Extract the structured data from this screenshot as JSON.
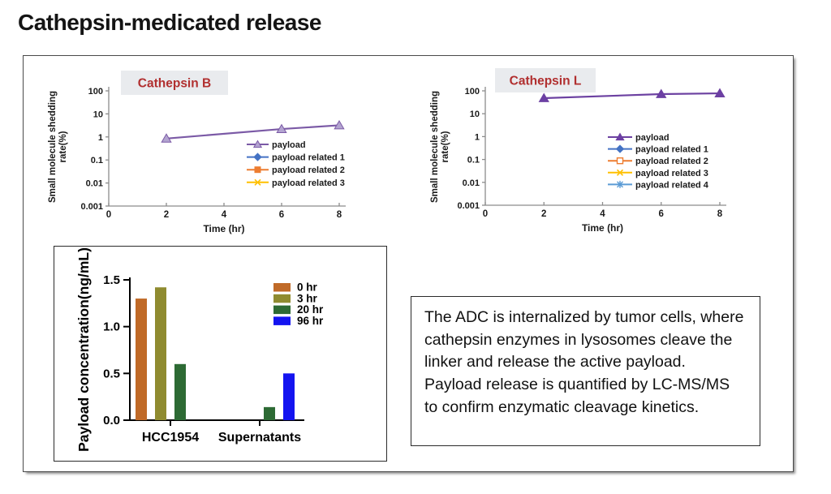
{
  "page": {
    "title": "Cathepsin-medicated release"
  },
  "colors": {
    "chart_title_text": "#B12F2F",
    "chart_title_bg": "#E9EBEE",
    "axis_gray": "#8C8C8C",
    "axis_black": "#000000",
    "payload_purple": "#7B5AA6",
    "payload_purple_dark": "#6C41A1"
  },
  "chart_data": [
    {
      "id": "cathepsin-b",
      "type": "line",
      "title": "Cathepsin B",
      "xlabel": "Time (hr)",
      "ylabel_line1": "Small molecule shedding",
      "ylabel_line2": "rate(%)",
      "y_scale": "log",
      "ylog_max": 100,
      "xlim": [
        0,
        8
      ],
      "x_ticks": [
        0,
        2,
        4,
        6,
        8
      ],
      "y_ticks": [
        "100",
        "10",
        "1",
        "0.1",
        "0.01",
        "0.001"
      ],
      "legend_position": "right-center",
      "grid": false,
      "series": [
        {
          "name": "payload",
          "x": [
            2,
            6,
            8
          ],
          "y": [
            0.85,
            2.2,
            3.2
          ],
          "color": "#7B5AA6",
          "marker": "triangle",
          "marker_fill": "#B3A4D0"
        },
        {
          "name": "payload related 1",
          "x": [],
          "y": [],
          "color": "#4472C4",
          "marker": "diamond",
          "marker_fill": "#4472C4"
        },
        {
          "name": "payload related 2",
          "x": [],
          "y": [],
          "color": "#ED7D31",
          "marker": "square",
          "marker_fill": "#ED7D31"
        },
        {
          "name": "payload related 3",
          "x": [],
          "y": [],
          "color": "#FFC000",
          "marker": "x",
          "marker_fill": "#FFC000"
        }
      ]
    },
    {
      "id": "cathepsin-l",
      "type": "line",
      "title": "Cathepsin L",
      "xlabel": "Time (hr)",
      "ylabel_line1": "Small molecule shedding",
      "ylabel_line2": "rate(%)",
      "y_scale": "log",
      "ylog_max": 100,
      "xlim": [
        0,
        8
      ],
      "x_ticks": [
        0,
        2,
        4,
        6,
        8
      ],
      "y_ticks": [
        "100",
        "10",
        "1",
        "0.1",
        "0.01",
        "0.001"
      ],
      "legend_position": "right-center",
      "grid": false,
      "series": [
        {
          "name": "payload",
          "x": [
            2,
            6,
            8
          ],
          "y": [
            48,
            72,
            78
          ],
          "color": "#6C41A1",
          "marker": "triangle",
          "marker_fill": "#6C3FA4"
        },
        {
          "name": "payload related 1",
          "x": [],
          "y": [],
          "color": "#4472C4",
          "marker": "diamond",
          "marker_fill": "#4472C4"
        },
        {
          "name": "payload related 2",
          "x": [],
          "y": [],
          "color": "#ED7D31",
          "marker": "square-open",
          "marker_fill": "#FFFFFF"
        },
        {
          "name": "payload related 3",
          "x": [],
          "y": [],
          "color": "#FFC000",
          "marker": "x",
          "marker_fill": "#FFC000"
        },
        {
          "name": "payload related 4",
          "x": [],
          "y": [],
          "color": "#5B9BD5",
          "marker": "asterisk",
          "marker_fill": "#5B9BD5"
        }
      ]
    },
    {
      "id": "payload-concentration",
      "type": "bar",
      "title": "",
      "xlabel": "",
      "ylabel": "Payload concentration(ng/mL)",
      "ylim": [
        0,
        1.5
      ],
      "y_ticks": [
        "0.0",
        "0.5",
        "1.0",
        "1.5"
      ],
      "categories": [
        "HCC1954",
        "Supernatants"
      ],
      "legend_position": "top-right",
      "grid": false,
      "series": [
        {
          "name": "0 hr",
          "color": "#C06A28",
          "values": [
            1.3,
            0
          ]
        },
        {
          "name": "3 hr",
          "color": "#8F8B30",
          "values": [
            1.42,
            0
          ]
        },
        {
          "name": "20 hr",
          "color": "#2D6A34",
          "values": [
            0.6,
            0.14
          ]
        },
        {
          "name": "96 hr",
          "color": "#1414F0",
          "values": [
            0,
            0.5
          ]
        }
      ]
    }
  ],
  "description_box": {
    "text": "The ADC is internalized by tumor cells, where cathepsin enzymes in lysosomes cleave the linker and release the active payload. Payload release is quantified by LC-MS/MS to confirm enzymatic cleavage kinetics."
  }
}
